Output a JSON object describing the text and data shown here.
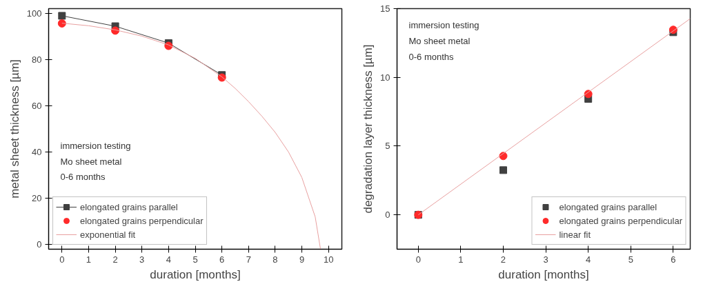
{
  "chart_data": [
    {
      "type": "scatter",
      "xlabel": "duration [months]",
      "ylabel": "metal sheet thickness [µm]",
      "xlim": [
        -0.5,
        10.5
      ],
      "ylim": [
        -2,
        102
      ],
      "xticks": [
        0,
        1,
        2,
        3,
        4,
        5,
        6,
        7,
        8,
        9,
        10
      ],
      "yticks": [
        0,
        20,
        40,
        60,
        80,
        100
      ],
      "grid": false,
      "legend": "bottom left",
      "annotations": [
        "immersion testing",
        "Mo sheet metal",
        "0-6 months"
      ],
      "series": [
        {
          "name": "elongated grains parallel",
          "type": "line",
          "marker": "square",
          "color": "#404040",
          "x": [
            0,
            2,
            4,
            6
          ],
          "values": [
            98.9,
            94.4,
            87.1,
            73.3
          ]
        },
        {
          "name": "elongated grains perpendicular",
          "type": "scatter",
          "marker": "circle",
          "color": "#ff2a2a",
          "x": [
            0,
            2,
            4,
            6
          ],
          "values": [
            95.6,
            92.5,
            85.9,
            72.2
          ]
        },
        {
          "name": "exponential fit",
          "type": "line",
          "marker": "none",
          "color": "#e8a0a0",
          "x": [
            0,
            1,
            2,
            3,
            4,
            5,
            6,
            6.5,
            7,
            7.5,
            8,
            8.5,
            9,
            9.5,
            9.7
          ],
          "values": [
            95.7,
            94.6,
            92.8,
            90.1,
            86.3,
            80.5,
            72.5,
            67.5,
            61.8,
            55.5,
            48.5,
            40,
            29,
            12,
            -2
          ]
        }
      ]
    },
    {
      "type": "scatter",
      "xlabel": "duration [months]",
      "ylabel": "degradation layer thickness [µm]",
      "xlim": [
        -0.5,
        6.4
      ],
      "ylim": [
        -2.5,
        15
      ],
      "xticks": [
        0,
        1,
        2,
        3,
        4,
        5,
        6
      ],
      "yticks": [
        0,
        5,
        10,
        15
      ],
      "grid": false,
      "legend": "bottom right",
      "annotations": [
        "immersion testing",
        "Mo sheet metal",
        "0-6 months"
      ],
      "series": [
        {
          "name": "elongated grains parallel",
          "type": "scatter",
          "marker": "square",
          "color": "#404040",
          "x": [
            0,
            2,
            4,
            6
          ],
          "values": [
            0,
            3.25,
            8.43,
            13.28
          ]
        },
        {
          "name": "elongated grains perpendicular",
          "type": "scatter",
          "marker": "circle",
          "color": "#ff2a2a",
          "x": [
            0,
            2,
            4,
            6
          ],
          "values": [
            0,
            4.28,
            8.79,
            13.46
          ]
        },
        {
          "name": "linear fit",
          "type": "line",
          "marker": "none",
          "color": "#e8a0a0",
          "x": [
            0,
            6.4
          ],
          "values": [
            0,
            14.27
          ]
        }
      ]
    }
  ]
}
